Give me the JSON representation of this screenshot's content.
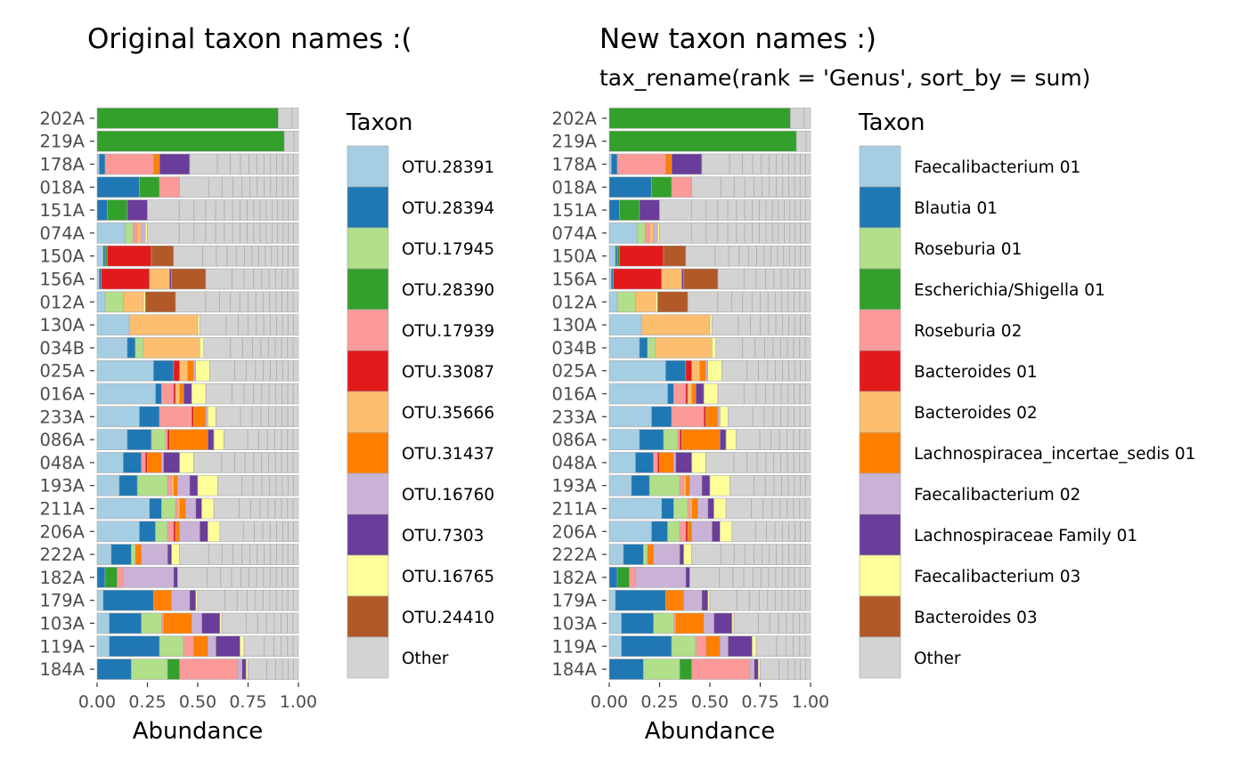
{
  "colors": {
    "palette": [
      "#A6CEE3",
      "#1F78B4",
      "#B2DF8A",
      "#33A02C",
      "#FB9A99",
      "#E31A1C",
      "#FDBF6F",
      "#FF7F00",
      "#CAB2D6",
      "#6A3D9A",
      "#FFFF99",
      "#B15928",
      "#D3D3D3"
    ],
    "bar_edge": "#a9a9a9",
    "axis_text": "#4d4d4d"
  },
  "chart_data": [
    {
      "type": "bar",
      "orientation": "horizontal-stacked",
      "title": "Original taxon names :(",
      "subtitle": "",
      "xlabel": "Abundance",
      "ylabel": "",
      "xlim": [
        0,
        1
      ],
      "xticks": [
        "0.00",
        "0.25",
        "0.50",
        "0.75",
        "1.00"
      ],
      "grid": false,
      "legend_position": "right",
      "legend_title": "Taxon",
      "categories": [
        "202A",
        "219A",
        "178A",
        "018A",
        "151A",
        "074A",
        "150A",
        "156A",
        "012A",
        "130A",
        "034B",
        "025A",
        "016A",
        "233A",
        "086A",
        "048A",
        "193A",
        "211A",
        "206A",
        "222A",
        "182A",
        "179A",
        "103A",
        "119A",
        "184A"
      ],
      "series": [
        {
          "name": "OTU.28391",
          "values": [
            0.0,
            0.0,
            0.01,
            0.0,
            0.0,
            0.14,
            0.03,
            0.01,
            0.04,
            0.16,
            0.15,
            0.28,
            0.29,
            0.21,
            0.15,
            0.13,
            0.11,
            0.26,
            0.21,
            0.07,
            0.0,
            0.03,
            0.06,
            0.06,
            0.0
          ]
        },
        {
          "name": "OTU.28394",
          "values": [
            0.0,
            0.0,
            0.03,
            0.21,
            0.05,
            0.0,
            0.01,
            0.01,
            0.0,
            0.0,
            0.04,
            0.1,
            0.03,
            0.1,
            0.12,
            0.09,
            0.09,
            0.06,
            0.08,
            0.1,
            0.04,
            0.25,
            0.16,
            0.25,
            0.17
          ]
        },
        {
          "name": "OTU.17945",
          "values": [
            0.0,
            0.0,
            0.0,
            0.0,
            0.0,
            0.04,
            0.0,
            0.0,
            0.09,
            0.0,
            0.04,
            0.0,
            0.0,
            0.0,
            0.07,
            0.0,
            0.15,
            0.07,
            0.06,
            0.02,
            0.0,
            0.0,
            0.1,
            0.12,
            0.18
          ]
        },
        {
          "name": "OTU.28390",
          "values": [
            0.9,
            0.93,
            0.0,
            0.1,
            0.1,
            0.0,
            0.01,
            0.0,
            0.0,
            0.0,
            0.0,
            0.0,
            0.0,
            0.0,
            0.0,
            0.0,
            0.0,
            0.0,
            0.0,
            0.0,
            0.06,
            0.0,
            0.0,
            0.0,
            0.06
          ]
        },
        {
          "name": "OTU.17939",
          "values": [
            0.0,
            0.0,
            0.24,
            0.1,
            0.0,
            0.02,
            0.0,
            0.0,
            0.0,
            0.0,
            0.0,
            0.0,
            0.06,
            0.16,
            0.01,
            0.02,
            0.02,
            0.01,
            0.03,
            0.0,
            0.03,
            0.0,
            0.01,
            0.05,
            0.29
          ]
        },
        {
          "name": "OTU.33087",
          "values": [
            0.0,
            0.0,
            0.0,
            0.0,
            0.0,
            0.0,
            0.22,
            0.24,
            0.0,
            0.0,
            0.0,
            0.03,
            0.01,
            0.01,
            0.01,
            0.01,
            0.0,
            0.0,
            0.01,
            0.0,
            0.0,
            0.0,
            0.0,
            0.0,
            0.0
          ]
        },
        {
          "name": "OTU.35666",
          "values": [
            0.0,
            0.0,
            0.0,
            0.0,
            0.0,
            0.02,
            0.0,
            0.1,
            0.1,
            0.34,
            0.28,
            0.04,
            0.02,
            0.0,
            0.0,
            0.0,
            0.01,
            0.01,
            0.0,
            0.0,
            0.0,
            0.0,
            0.0,
            0.0,
            0.0
          ]
        },
        {
          "name": "OTU.31437",
          "values": [
            0.0,
            0.0,
            0.03,
            0.0,
            0.0,
            0.0,
            0.0,
            0.0,
            0.0,
            0.0,
            0.0,
            0.03,
            0.02,
            0.06,
            0.19,
            0.07,
            0.02,
            0.03,
            0.02,
            0.03,
            0.0,
            0.09,
            0.14,
            0.07,
            0.0
          ]
        },
        {
          "name": "OTU.16760",
          "values": [
            0.0,
            0.0,
            0.0,
            0.0,
            0.0,
            0.02,
            0.0,
            0.0,
            0.0,
            0.0,
            0.0,
            0.01,
            0.0,
            0.01,
            0.0,
            0.01,
            0.06,
            0.05,
            0.1,
            0.13,
            0.25,
            0.09,
            0.05,
            0.04,
            0.02
          ]
        },
        {
          "name": "OTU.7303",
          "values": [
            0.0,
            0.0,
            0.15,
            0.0,
            0.1,
            0.0,
            0.0,
            0.01,
            0.0,
            0.0,
            0.0,
            0.0,
            0.04,
            0.0,
            0.03,
            0.08,
            0.04,
            0.03,
            0.04,
            0.02,
            0.02,
            0.03,
            0.09,
            0.12,
            0.02
          ]
        },
        {
          "name": "OTU.16765",
          "values": [
            0.0,
            0.0,
            0.0,
            0.0,
            0.0,
            0.01,
            0.0,
            0.0,
            0.01,
            0.01,
            0.02,
            0.07,
            0.07,
            0.04,
            0.05,
            0.07,
            0.1,
            0.06,
            0.06,
            0.04,
            0.0,
            0.01,
            0.01,
            0.02,
            0.01
          ]
        },
        {
          "name": "OTU.24410",
          "values": [
            0.0,
            0.0,
            0.0,
            0.0,
            0.0,
            0.0,
            0.11,
            0.17,
            0.15,
            0.0,
            0.0,
            0.0,
            0.0,
            0.0,
            0.0,
            0.0,
            0.0,
            0.0,
            0.0,
            0.0,
            0.0,
            0.0,
            0.0,
            0.0,
            0.0
          ]
        },
        {
          "name": "Other",
          "values": [
            0.1,
            0.07,
            0.54,
            0.59,
            0.75,
            0.75,
            0.62,
            0.46,
            0.61,
            0.49,
            0.47,
            0.44,
            0.46,
            0.41,
            0.37,
            0.52,
            0.4,
            0.42,
            0.39,
            0.59,
            0.6,
            0.5,
            0.38,
            0.27,
            0.25
          ]
        }
      ]
    },
    {
      "type": "bar",
      "orientation": "horizontal-stacked",
      "title": "New taxon names :)",
      "subtitle": "tax_rename(rank = 'Genus', sort_by = sum)",
      "xlabel": "Abundance",
      "ylabel": "",
      "xlim": [
        0,
        1
      ],
      "xticks": [
        "0.00",
        "0.25",
        "0.50",
        "0.75",
        "1.00"
      ],
      "grid": false,
      "legend_position": "right",
      "legend_title": "Taxon",
      "categories": [
        "202A",
        "219A",
        "178A",
        "018A",
        "151A",
        "074A",
        "150A",
        "156A",
        "012A",
        "130A",
        "034B",
        "025A",
        "016A",
        "233A",
        "086A",
        "048A",
        "193A",
        "211A",
        "206A",
        "222A",
        "182A",
        "179A",
        "103A",
        "119A",
        "184A"
      ],
      "series": [
        {
          "name": "Faecalibacterium 01",
          "values": [
            0.0,
            0.0,
            0.01,
            0.0,
            0.0,
            0.14,
            0.03,
            0.01,
            0.04,
            0.16,
            0.15,
            0.28,
            0.29,
            0.21,
            0.15,
            0.13,
            0.11,
            0.26,
            0.21,
            0.07,
            0.0,
            0.03,
            0.06,
            0.06,
            0.0
          ]
        },
        {
          "name": "Blautia 01",
          "values": [
            0.0,
            0.0,
            0.03,
            0.21,
            0.05,
            0.0,
            0.01,
            0.01,
            0.0,
            0.0,
            0.04,
            0.1,
            0.03,
            0.1,
            0.12,
            0.09,
            0.09,
            0.06,
            0.08,
            0.1,
            0.04,
            0.25,
            0.16,
            0.25,
            0.17
          ]
        },
        {
          "name": "Roseburia 01",
          "values": [
            0.0,
            0.0,
            0.0,
            0.0,
            0.0,
            0.04,
            0.0,
            0.0,
            0.09,
            0.0,
            0.04,
            0.0,
            0.0,
            0.0,
            0.07,
            0.0,
            0.15,
            0.07,
            0.06,
            0.02,
            0.0,
            0.0,
            0.1,
            0.12,
            0.18
          ]
        },
        {
          "name": "Escherichia/Shigella 01",
          "values": [
            0.9,
            0.93,
            0.0,
            0.1,
            0.1,
            0.0,
            0.01,
            0.0,
            0.0,
            0.0,
            0.0,
            0.0,
            0.0,
            0.0,
            0.0,
            0.0,
            0.0,
            0.0,
            0.0,
            0.0,
            0.06,
            0.0,
            0.0,
            0.0,
            0.06
          ]
        },
        {
          "name": "Roseburia 02",
          "values": [
            0.0,
            0.0,
            0.24,
            0.1,
            0.0,
            0.02,
            0.0,
            0.0,
            0.0,
            0.0,
            0.0,
            0.0,
            0.06,
            0.16,
            0.01,
            0.02,
            0.02,
            0.01,
            0.03,
            0.0,
            0.03,
            0.0,
            0.01,
            0.05,
            0.29
          ]
        },
        {
          "name": "Bacteroides 01",
          "values": [
            0.0,
            0.0,
            0.0,
            0.0,
            0.0,
            0.0,
            0.22,
            0.24,
            0.0,
            0.0,
            0.0,
            0.03,
            0.01,
            0.01,
            0.01,
            0.01,
            0.0,
            0.0,
            0.01,
            0.0,
            0.0,
            0.0,
            0.0,
            0.0,
            0.0
          ]
        },
        {
          "name": "Bacteroides 02",
          "values": [
            0.0,
            0.0,
            0.0,
            0.0,
            0.0,
            0.02,
            0.0,
            0.1,
            0.1,
            0.34,
            0.28,
            0.04,
            0.02,
            0.0,
            0.0,
            0.0,
            0.01,
            0.01,
            0.0,
            0.0,
            0.0,
            0.0,
            0.0,
            0.0,
            0.0
          ]
        },
        {
          "name": "Lachnospiracea_incertae_sedis 01",
          "values": [
            0.0,
            0.0,
            0.03,
            0.0,
            0.0,
            0.0,
            0.0,
            0.0,
            0.0,
            0.0,
            0.0,
            0.03,
            0.02,
            0.06,
            0.19,
            0.07,
            0.02,
            0.03,
            0.02,
            0.03,
            0.0,
            0.09,
            0.14,
            0.07,
            0.0
          ]
        },
        {
          "name": "Faecalibacterium 02",
          "values": [
            0.0,
            0.0,
            0.0,
            0.0,
            0.0,
            0.02,
            0.0,
            0.0,
            0.0,
            0.0,
            0.0,
            0.01,
            0.0,
            0.01,
            0.0,
            0.01,
            0.06,
            0.05,
            0.1,
            0.13,
            0.25,
            0.09,
            0.05,
            0.04,
            0.02
          ]
        },
        {
          "name": "Lachnospiraceae Family 01",
          "values": [
            0.0,
            0.0,
            0.15,
            0.0,
            0.1,
            0.0,
            0.0,
            0.01,
            0.0,
            0.0,
            0.0,
            0.0,
            0.04,
            0.0,
            0.03,
            0.08,
            0.04,
            0.03,
            0.04,
            0.02,
            0.02,
            0.03,
            0.09,
            0.12,
            0.02
          ]
        },
        {
          "name": "Faecalibacterium 03",
          "values": [
            0.0,
            0.0,
            0.0,
            0.0,
            0.0,
            0.01,
            0.0,
            0.0,
            0.01,
            0.01,
            0.02,
            0.07,
            0.07,
            0.04,
            0.05,
            0.07,
            0.1,
            0.06,
            0.06,
            0.04,
            0.0,
            0.01,
            0.01,
            0.02,
            0.01
          ]
        },
        {
          "name": "Bacteroides 03",
          "values": [
            0.0,
            0.0,
            0.0,
            0.0,
            0.0,
            0.0,
            0.11,
            0.17,
            0.15,
            0.0,
            0.0,
            0.0,
            0.0,
            0.0,
            0.0,
            0.0,
            0.0,
            0.0,
            0.0,
            0.0,
            0.0,
            0.0,
            0.0,
            0.0,
            0.0
          ]
        },
        {
          "name": "Other",
          "values": [
            0.1,
            0.07,
            0.54,
            0.59,
            0.75,
            0.75,
            0.62,
            0.46,
            0.61,
            0.49,
            0.47,
            0.44,
            0.46,
            0.41,
            0.37,
            0.52,
            0.4,
            0.42,
            0.39,
            0.59,
            0.6,
            0.5,
            0.38,
            0.27,
            0.25
          ]
        }
      ]
    }
  ]
}
